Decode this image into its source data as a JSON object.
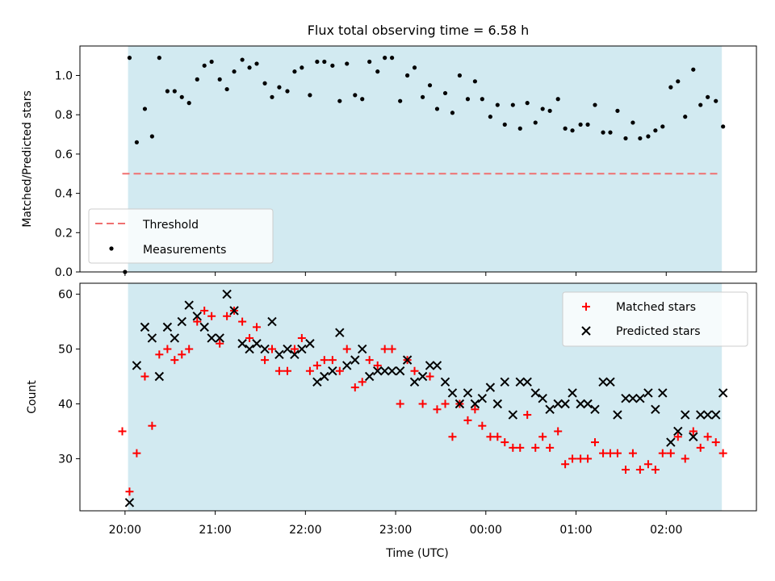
{
  "chart_data": [
    {
      "type": "scatter",
      "title": "Flux total observing time = 6.58 h",
      "ylabel": "Matched/Predicted stars",
      "xlabel": "",
      "ylim": [
        0.0,
        1.15
      ],
      "yticks": [
        0.0,
        0.2,
        0.4,
        0.6,
        0.8,
        1.0
      ],
      "ytick_labels": [
        "0.0",
        "0.2",
        "0.4",
        "0.6",
        "0.8",
        "1.0"
      ],
      "legend_position": "lower-left",
      "observing_window": [
        "20:02",
        "26:37"
      ],
      "threshold": {
        "name": "Threshold",
        "y": 0.5,
        "color": "#f07070",
        "style": "dashed"
      },
      "series": [
        {
          "name": "Measurements",
          "color": "#000000",
          "marker": "dot",
          "x": [
            20.0,
            20.05,
            20.13,
            20.22,
            20.3,
            20.38,
            20.47,
            20.55,
            20.63,
            20.71,
            20.8,
            20.88,
            20.96,
            21.05,
            21.13,
            21.21,
            21.3,
            21.38,
            21.46,
            21.55,
            21.63,
            21.71,
            21.8,
            21.88,
            21.96,
            22.05,
            22.13,
            22.21,
            22.3,
            22.38,
            22.46,
            22.55,
            22.63,
            22.71,
            22.8,
            22.88,
            22.96,
            23.05,
            23.13,
            23.21,
            23.3,
            23.38,
            23.46,
            23.55,
            23.63,
            23.71,
            23.8,
            23.88,
            23.96,
            24.05,
            24.13,
            24.21,
            24.3,
            24.38,
            24.46,
            24.55,
            24.63,
            24.71,
            24.8,
            24.88,
            24.96,
            25.05,
            25.13,
            25.21,
            25.3,
            25.38,
            25.46,
            25.55,
            25.63,
            25.71,
            25.8,
            25.88,
            25.96,
            26.05,
            26.13,
            26.21,
            26.3,
            26.38,
            26.46,
            26.55,
            26.63
          ],
          "y": [
            0.0,
            1.09,
            0.66,
            0.83,
            0.69,
            1.09,
            0.92,
            0.92,
            0.89,
            0.86,
            0.98,
            1.05,
            1.07,
            0.98,
            0.93,
            1.02,
            1.08,
            1.04,
            1.06,
            0.96,
            0.89,
            0.94,
            0.92,
            1.02,
            1.04,
            0.9,
            1.07,
            1.07,
            1.05,
            0.87,
            1.06,
            0.9,
            0.88,
            1.07,
            1.02,
            1.09,
            1.09,
            0.87,
            1.0,
            1.04,
            0.89,
            0.95,
            0.83,
            0.91,
            0.81,
            1.0,
            0.88,
            0.97,
            0.88,
            0.79,
            0.85,
            0.75,
            0.85,
            0.73,
            0.86,
            0.76,
            0.83,
            0.82,
            0.88,
            0.73,
            0.72,
            0.75,
            0.75,
            0.85,
            0.71,
            0.71,
            0.82,
            0.68,
            0.76,
            0.68,
            0.69,
            0.72,
            0.74,
            0.94,
            0.97,
            0.79,
            1.03,
            0.85,
            0.89,
            0.87,
            0.74
          ]
        }
      ]
    },
    {
      "type": "scatter",
      "title": "",
      "ylabel": "Count",
      "xlabel": "Time (UTC)",
      "ylim": [
        20.5,
        62
      ],
      "yticks": [
        30,
        40,
        50,
        60
      ],
      "ytick_labels": [
        "30",
        "40",
        "50",
        "60"
      ],
      "x_range": [
        "19:30",
        "27:00"
      ],
      "xticks": [
        "20:00",
        "21:00",
        "22:00",
        "23:00",
        "00:00",
        "01:00",
        "02:00"
      ],
      "xtick_hours": [
        20,
        21,
        22,
        23,
        24,
        25,
        26
      ],
      "legend_position": "top-right",
      "observing_window": [
        "20:02",
        "26:37"
      ],
      "series": [
        {
          "name": "Matched stars",
          "color": "#ff0000",
          "marker": "plus",
          "x": [
            19.97,
            20.05,
            20.13,
            20.22,
            20.3,
            20.38,
            20.47,
            20.55,
            20.63,
            20.71,
            20.8,
            20.88,
            20.96,
            21.05,
            21.13,
            21.21,
            21.3,
            21.38,
            21.46,
            21.55,
            21.63,
            21.71,
            21.8,
            21.88,
            21.96,
            22.05,
            22.13,
            22.21,
            22.3,
            22.38,
            22.46,
            22.55,
            22.63,
            22.71,
            22.8,
            22.88,
            22.96,
            23.05,
            23.13,
            23.21,
            23.3,
            23.38,
            23.46,
            23.55,
            23.63,
            23.71,
            23.8,
            23.88,
            23.96,
            24.05,
            24.13,
            24.21,
            24.3,
            24.38,
            24.46,
            24.55,
            24.63,
            24.71,
            24.8,
            24.88,
            24.96,
            25.05,
            25.13,
            25.21,
            25.3,
            25.38,
            25.46,
            25.55,
            25.63,
            25.71,
            25.8,
            25.88,
            25.96,
            26.05,
            26.13,
            26.21,
            26.3,
            26.38,
            26.46,
            26.55,
            26.63
          ],
          "y": [
            35,
            24,
            31,
            45,
            36,
            49,
            50,
            48,
            49,
            50,
            55,
            57,
            56,
            51,
            56,
            57,
            55,
            52,
            54,
            48,
            50,
            46,
            46,
            50,
            52,
            46,
            47,
            48,
            48,
            46,
            50,
            43,
            44,
            48,
            47,
            50,
            50,
            40,
            48,
            46,
            40,
            45,
            39,
            40,
            34,
            40,
            37,
            39,
            36,
            34,
            34,
            33,
            32,
            32,
            38,
            32,
            34,
            32,
            35,
            29,
            30,
            30,
            30,
            33,
            31,
            31,
            31,
            28,
            31,
            28,
            29,
            28,
            31,
            31,
            34,
            30,
            35,
            32,
            34,
            33,
            31
          ]
        },
        {
          "name": "Predicted stars",
          "color": "#000000",
          "marker": "x",
          "x": [
            20.05,
            20.13,
            20.22,
            20.3,
            20.38,
            20.47,
            20.55,
            20.63,
            20.71,
            20.8,
            20.88,
            20.96,
            21.05,
            21.13,
            21.21,
            21.3,
            21.38,
            21.46,
            21.55,
            21.63,
            21.71,
            21.8,
            21.88,
            21.96,
            22.05,
            22.13,
            22.21,
            22.3,
            22.38,
            22.46,
            22.55,
            22.63,
            22.71,
            22.8,
            22.88,
            22.96,
            23.05,
            23.13,
            23.21,
            23.3,
            23.38,
            23.46,
            23.55,
            23.63,
            23.71,
            23.8,
            23.88,
            23.96,
            24.05,
            24.13,
            24.21,
            24.3,
            24.38,
            24.46,
            24.55,
            24.63,
            24.71,
            24.8,
            24.88,
            24.96,
            25.05,
            25.13,
            25.21,
            25.3,
            25.38,
            25.46,
            25.55,
            25.63,
            25.71,
            25.8,
            25.88,
            25.96,
            26.05,
            26.13,
            26.21,
            26.3,
            26.38,
            26.46,
            26.55,
            26.63
          ],
          "y": [
            22,
            47,
            54,
            52,
            45,
            54,
            52,
            55,
            58,
            56,
            54,
            52,
            52,
            60,
            57,
            51,
            50,
            51,
            50,
            55,
            49,
            50,
            49,
            50,
            51,
            44,
            45,
            46,
            53,
            47,
            48,
            50,
            45,
            46,
            46,
            46,
            46,
            48,
            44,
            45,
            47,
            47,
            44,
            42,
            40,
            42,
            40,
            41,
            43,
            40,
            44,
            38,
            44,
            44,
            42,
            41,
            39,
            40,
            40,
            42,
            40,
            40,
            39,
            44,
            44,
            38,
            41,
            41,
            41,
            42,
            39,
            42,
            33,
            35,
            38,
            34,
            38,
            38,
            38,
            42
          ]
        }
      ]
    }
  ]
}
